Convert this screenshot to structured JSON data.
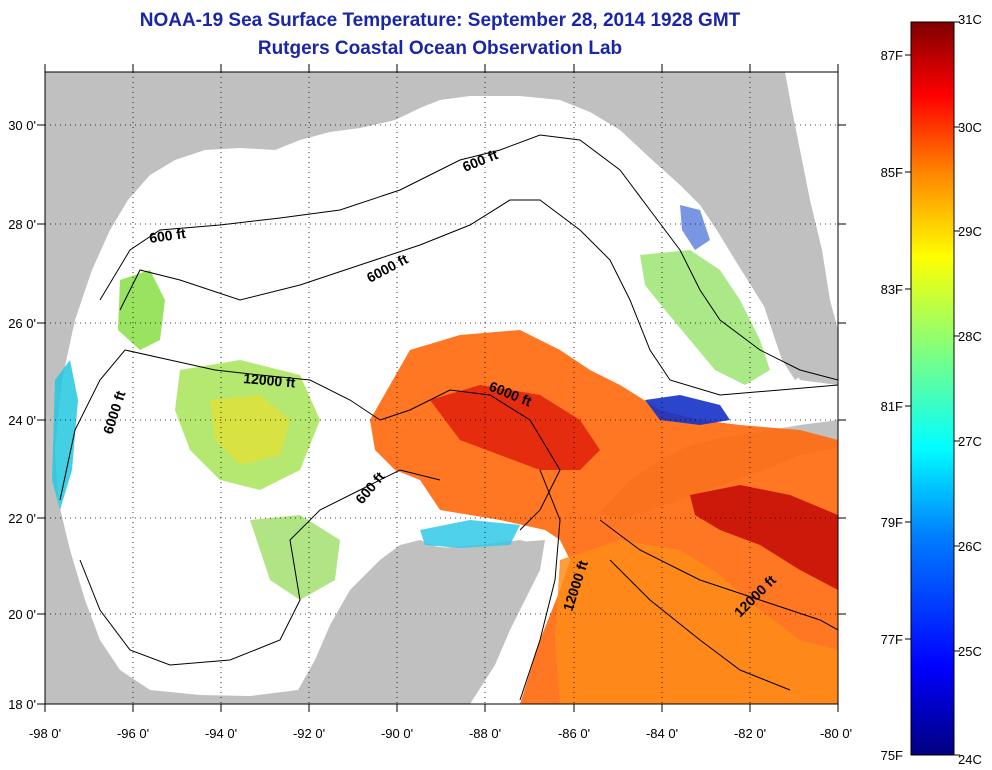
{
  "title": "NOAA-19 Sea Surface Temperature:  September 28, 2014 1928 GMT",
  "subtitle": "Rutgers Coastal Ocean Observation Lab",
  "map": {
    "lon_ticks": [
      "-98 0'",
      "-96 0'",
      "-94 0'",
      "-92 0'",
      "-90 0'",
      "-88 0'",
      "-86 0'",
      "-84 0'",
      "-82 0'",
      "-80 0'"
    ],
    "lat_ticks": [
      "30 0'",
      "28 0'",
      "26 0'",
      "24 0'",
      "22 0'",
      "20 0'",
      "18 0'"
    ],
    "lon_range": [
      -98,
      -80
    ],
    "lat_range": [
      18,
      31
    ],
    "contour_labels": [
      "600 ft",
      "600 ft",
      "6000 ft",
      "12000 ft",
      "6000 ft",
      "6000 ft",
      "600 ft",
      "12000 ft",
      "12000 ft"
    ],
    "colors": {
      "land": "#c0c0c0",
      "no_data": "#ffffff"
    }
  },
  "colorbar": {
    "celsius": [
      "31C",
      "30C",
      "29C",
      "28C",
      "27C",
      "26C",
      "25C",
      "24C"
    ],
    "fahrenheit": [
      "87F",
      "85F",
      "83F",
      "81F",
      "79F",
      "77F",
      "75F"
    ],
    "range_c": [
      24,
      31
    ],
    "colors": [
      "#00007f",
      "#0000ff",
      "#007fff",
      "#00ffff",
      "#7fff7f",
      "#ffff00",
      "#ff7f00",
      "#ff0000",
      "#7f0000"
    ]
  }
}
